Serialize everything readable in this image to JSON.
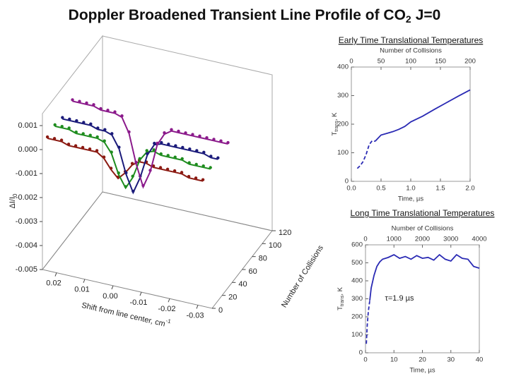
{
  "title": {
    "text": "Doppler Broadened Transient Line Profile of CO",
    "sub": "2",
    "tail": "J=0"
  },
  "chart_data": [
    {
      "type": "line3d",
      "ylabel": "ΔI/I",
      "ylabel_sub": "0",
      "xlabel": "Shift from line center, cm",
      "xlabel_sup": "-1",
      "zlabel": "Number of Collisions",
      "xlim": [
        0.025,
        -0.035
      ],
      "ylim": [
        -0.005,
        0.0015
      ],
      "zlim": [
        0,
        120
      ],
      "xticks": [
        0.02,
        0.01,
        {
          "value": 0,
          "label": "0.00"
        },
        -0.01,
        -0.02,
        -0.03
      ],
      "yticks": [
        0.001,
        {
          "value": 0,
          "label": "0.000"
        },
        -0.001,
        -0.002,
        -0.003,
        -0.004,
        -0.005
      ],
      "zticks": [
        0,
        20,
        40,
        60,
        80,
        100,
        120
      ],
      "x": [
        0.025,
        0.0225,
        0.02,
        0.0175,
        0.015,
        0.0125,
        0.01,
        0.0075,
        0.005,
        0.0025,
        0,
        -0.0025,
        -0.005,
        -0.0075,
        -0.01,
        -0.0125,
        -0.015,
        -0.0175,
        -0.02,
        -0.0225,
        -0.025,
        -0.0275,
        -0.03
      ],
      "series": [
        {
          "color": "#8b1a12",
          "z": 10,
          "values": [
            0.0002,
            0.0002,
            0.0002,
            0.0001,
            0.0001,
            0.0001,
            0.0001,
            0.0001,
            -0.0001,
            -0.0005,
            -0.0008,
            -0.0005,
            -0.0001,
            0.0001,
            0.0001,
            0,
            0,
            0,
            0,
            0,
            -0.0001,
            -0.0001,
            -0.0001
          ]
        },
        {
          "color": "#1e8c1e",
          "z": 25,
          "values": [
            0.0003,
            0.0003,
            0.0003,
            0.0002,
            0.0002,
            0.0002,
            0.0002,
            0.0001,
            -0.0003,
            -0.0011,
            -0.0016,
            -0.0011,
            -0.0003,
            0.0001,
            0.0002,
            0.0001,
            0.0001,
            0.0001,
            0.0001,
            0,
            0,
            0,
            0
          ]
        },
        {
          "color": "#1a1a7a",
          "z": 40,
          "values": [
            0.0002,
            0.0002,
            0.0002,
            0.0002,
            0.0002,
            0.0001,
            0.0001,
            0,
            -0.0005,
            -0.0015,
            -0.0022,
            -0.0015,
            -0.0005,
            0,
            0.0001,
            0.0001,
            0.0001,
            0.0001,
            0.0001,
            0.0001,
            0.0001,
            0,
            0
          ]
        },
        {
          "color": "#8b1a8b",
          "z": 60,
          "values": [
            0.0004,
            0.0004,
            0.0004,
            0.0004,
            0.0003,
            0.0003,
            0.0003,
            0.0002,
            -0.0004,
            -0.0016,
            -0.0025,
            -0.0018,
            -0.0006,
            -0.0001,
            0.0001,
            0.0001,
            0.0001,
            0.0001,
            0.0001,
            0.0001,
            0.0001,
            0.0001,
            0.0001
          ]
        }
      ]
    },
    {
      "type": "line",
      "title": "Early Time Translational Temperatures",
      "x2label": "Number of Collisions",
      "x2lim": [
        0,
        200
      ],
      "x2ticks": [
        0,
        50,
        100,
        150,
        200
      ],
      "xlabel": "Time, µs",
      "xlim": [
        0,
        2
      ],
      "xticks": [
        {
          "value": 0,
          "label": "0.0"
        },
        0.5,
        {
          "value": 1,
          "label": "1.0"
        },
        1.5,
        {
          "value": 2,
          "label": "2.0"
        }
      ],
      "ylabel": "T",
      "ylabel_sub": "trans",
      "ylabel_tail": ", K",
      "ylim": [
        0,
        400
      ],
      "yticks": [
        0,
        100,
        200,
        300,
        400
      ],
      "series": [
        {
          "color": "#2a2ab4",
          "linestyle": "dashed",
          "x": [
            0.1,
            0.15,
            0.2,
            0.25,
            0.3,
            0.35,
            0.4
          ],
          "values": [
            45,
            55,
            70,
            95,
            128,
            142,
            140
          ]
        },
        {
          "color": "#2a2ab4",
          "linestyle": "solid",
          "x": [
            0.4,
            0.5,
            0.6,
            0.7,
            0.8,
            0.9,
            1.0,
            1.2,
            1.4,
            1.6,
            1.8,
            2.0
          ],
          "values": [
            140,
            162,
            168,
            174,
            182,
            192,
            208,
            228,
            252,
            275,
            298,
            320
          ]
        }
      ]
    },
    {
      "type": "line",
      "title": "Long Time Translational Temperatures",
      "x2label": "Number of Collisions",
      "x2lim": [
        0,
        4000
      ],
      "x2ticks": [
        0,
        1000,
        2000,
        3000,
        4000
      ],
      "xlabel": "Time, µs",
      "xlim": [
        0,
        40
      ],
      "xticks": [
        0,
        10,
        20,
        30,
        40
      ],
      "ylabel": "T",
      "ylabel_sub": "trans",
      "ylabel_tail": ", K",
      "ylim": [
        0,
        600
      ],
      "yticks": [
        0,
        100,
        200,
        300,
        400,
        500,
        600
      ],
      "annotation": "τ=1.9 µs",
      "series": [
        {
          "color": "#2a2ab4",
          "linestyle": "dashed",
          "x": [
            0.3,
            0.6,
            1.0,
            1.5
          ],
          "values": [
            50,
            150,
            230,
            290
          ]
        },
        {
          "color": "#2a2ab4",
          "linestyle": "solid",
          "x": [
            1.5,
            2,
            3,
            4,
            5,
            6,
            8,
            10,
            12,
            14,
            16,
            18,
            20,
            22,
            24,
            26,
            28,
            30,
            32,
            34,
            36,
            38,
            40
          ],
          "values": [
            290,
            360,
            430,
            480,
            505,
            520,
            530,
            545,
            525,
            535,
            520,
            540,
            525,
            530,
            515,
            545,
            520,
            510,
            545,
            525,
            520,
            480,
            470
          ]
        }
      ]
    }
  ]
}
